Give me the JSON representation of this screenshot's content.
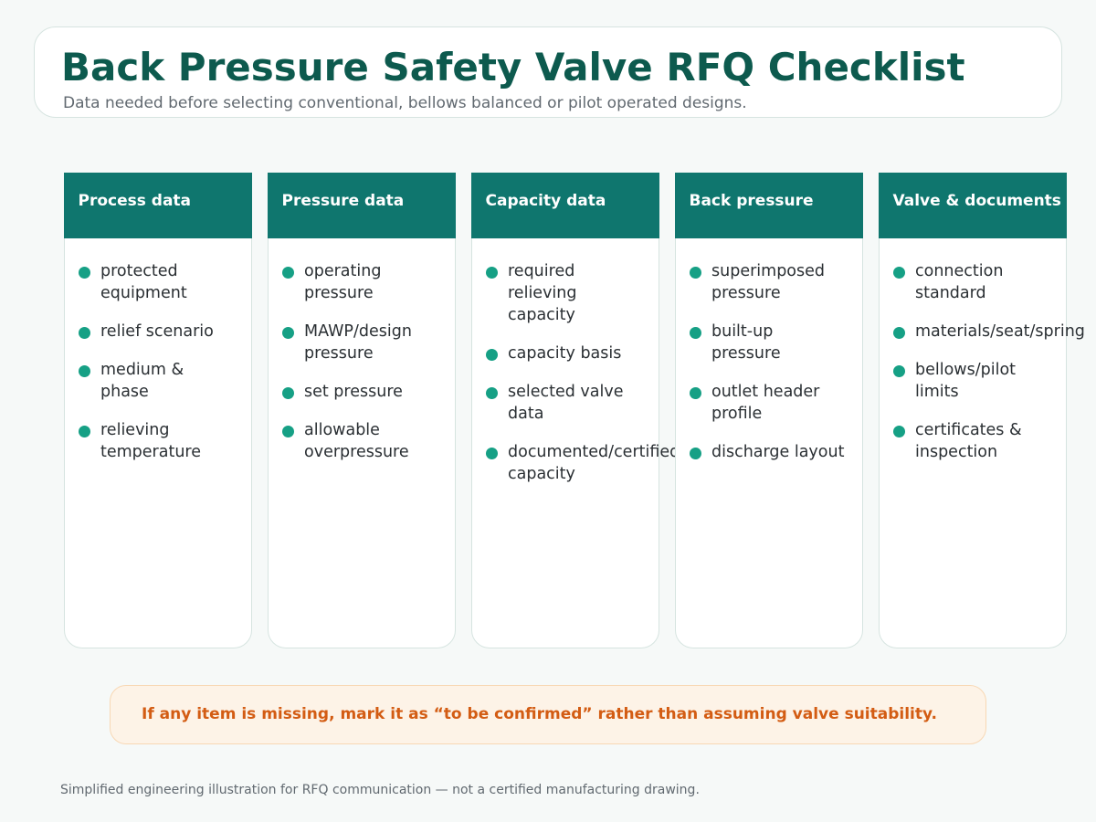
{
  "header": {
    "title": "Back Pressure Safety Valve RFQ Checklist",
    "subtitle": "Data needed before selecting conventional, bellows balanced or pilot operated designs."
  },
  "columns": [
    {
      "title": "Process data",
      "items": [
        "protected\nequipment",
        "relief scenario",
        "medium &\nphase",
        "relieving\ntemperature"
      ]
    },
    {
      "title": "Pressure data",
      "items": [
        "operating\npressure",
        "MAWP/design\npressure",
        "set pressure",
        "allowable\noverpressure"
      ]
    },
    {
      "title": "Capacity data",
      "items": [
        "required\nrelieving\ncapacity",
        "capacity basis",
        "selected valve\ndata",
        "documented/certified\ncapacity"
      ]
    },
    {
      "title": "Back pressure",
      "items": [
        "superimposed\npressure",
        "built-up\npressure",
        "outlet header\nprofile",
        "discharge layout"
      ]
    },
    {
      "title": "Valve & documents",
      "items": [
        "connection\nstandard",
        "materials/seat/spring",
        "bellows/pilot\nlimits",
        "certificates &\ninspection"
      ]
    }
  ],
  "note": "If any item is missing, mark it as “to be confirmed” rather than assuming valve suitability.",
  "footer": "Simplified engineering illustration for RFQ communication — not a certified manufacturing drawing.",
  "colors": {
    "header_fill": "#0f766e",
    "title_text": "#0d5a4e",
    "bullet": "#16a085",
    "note_text": "#d35c13",
    "note_fill": "#fdf3e7"
  }
}
